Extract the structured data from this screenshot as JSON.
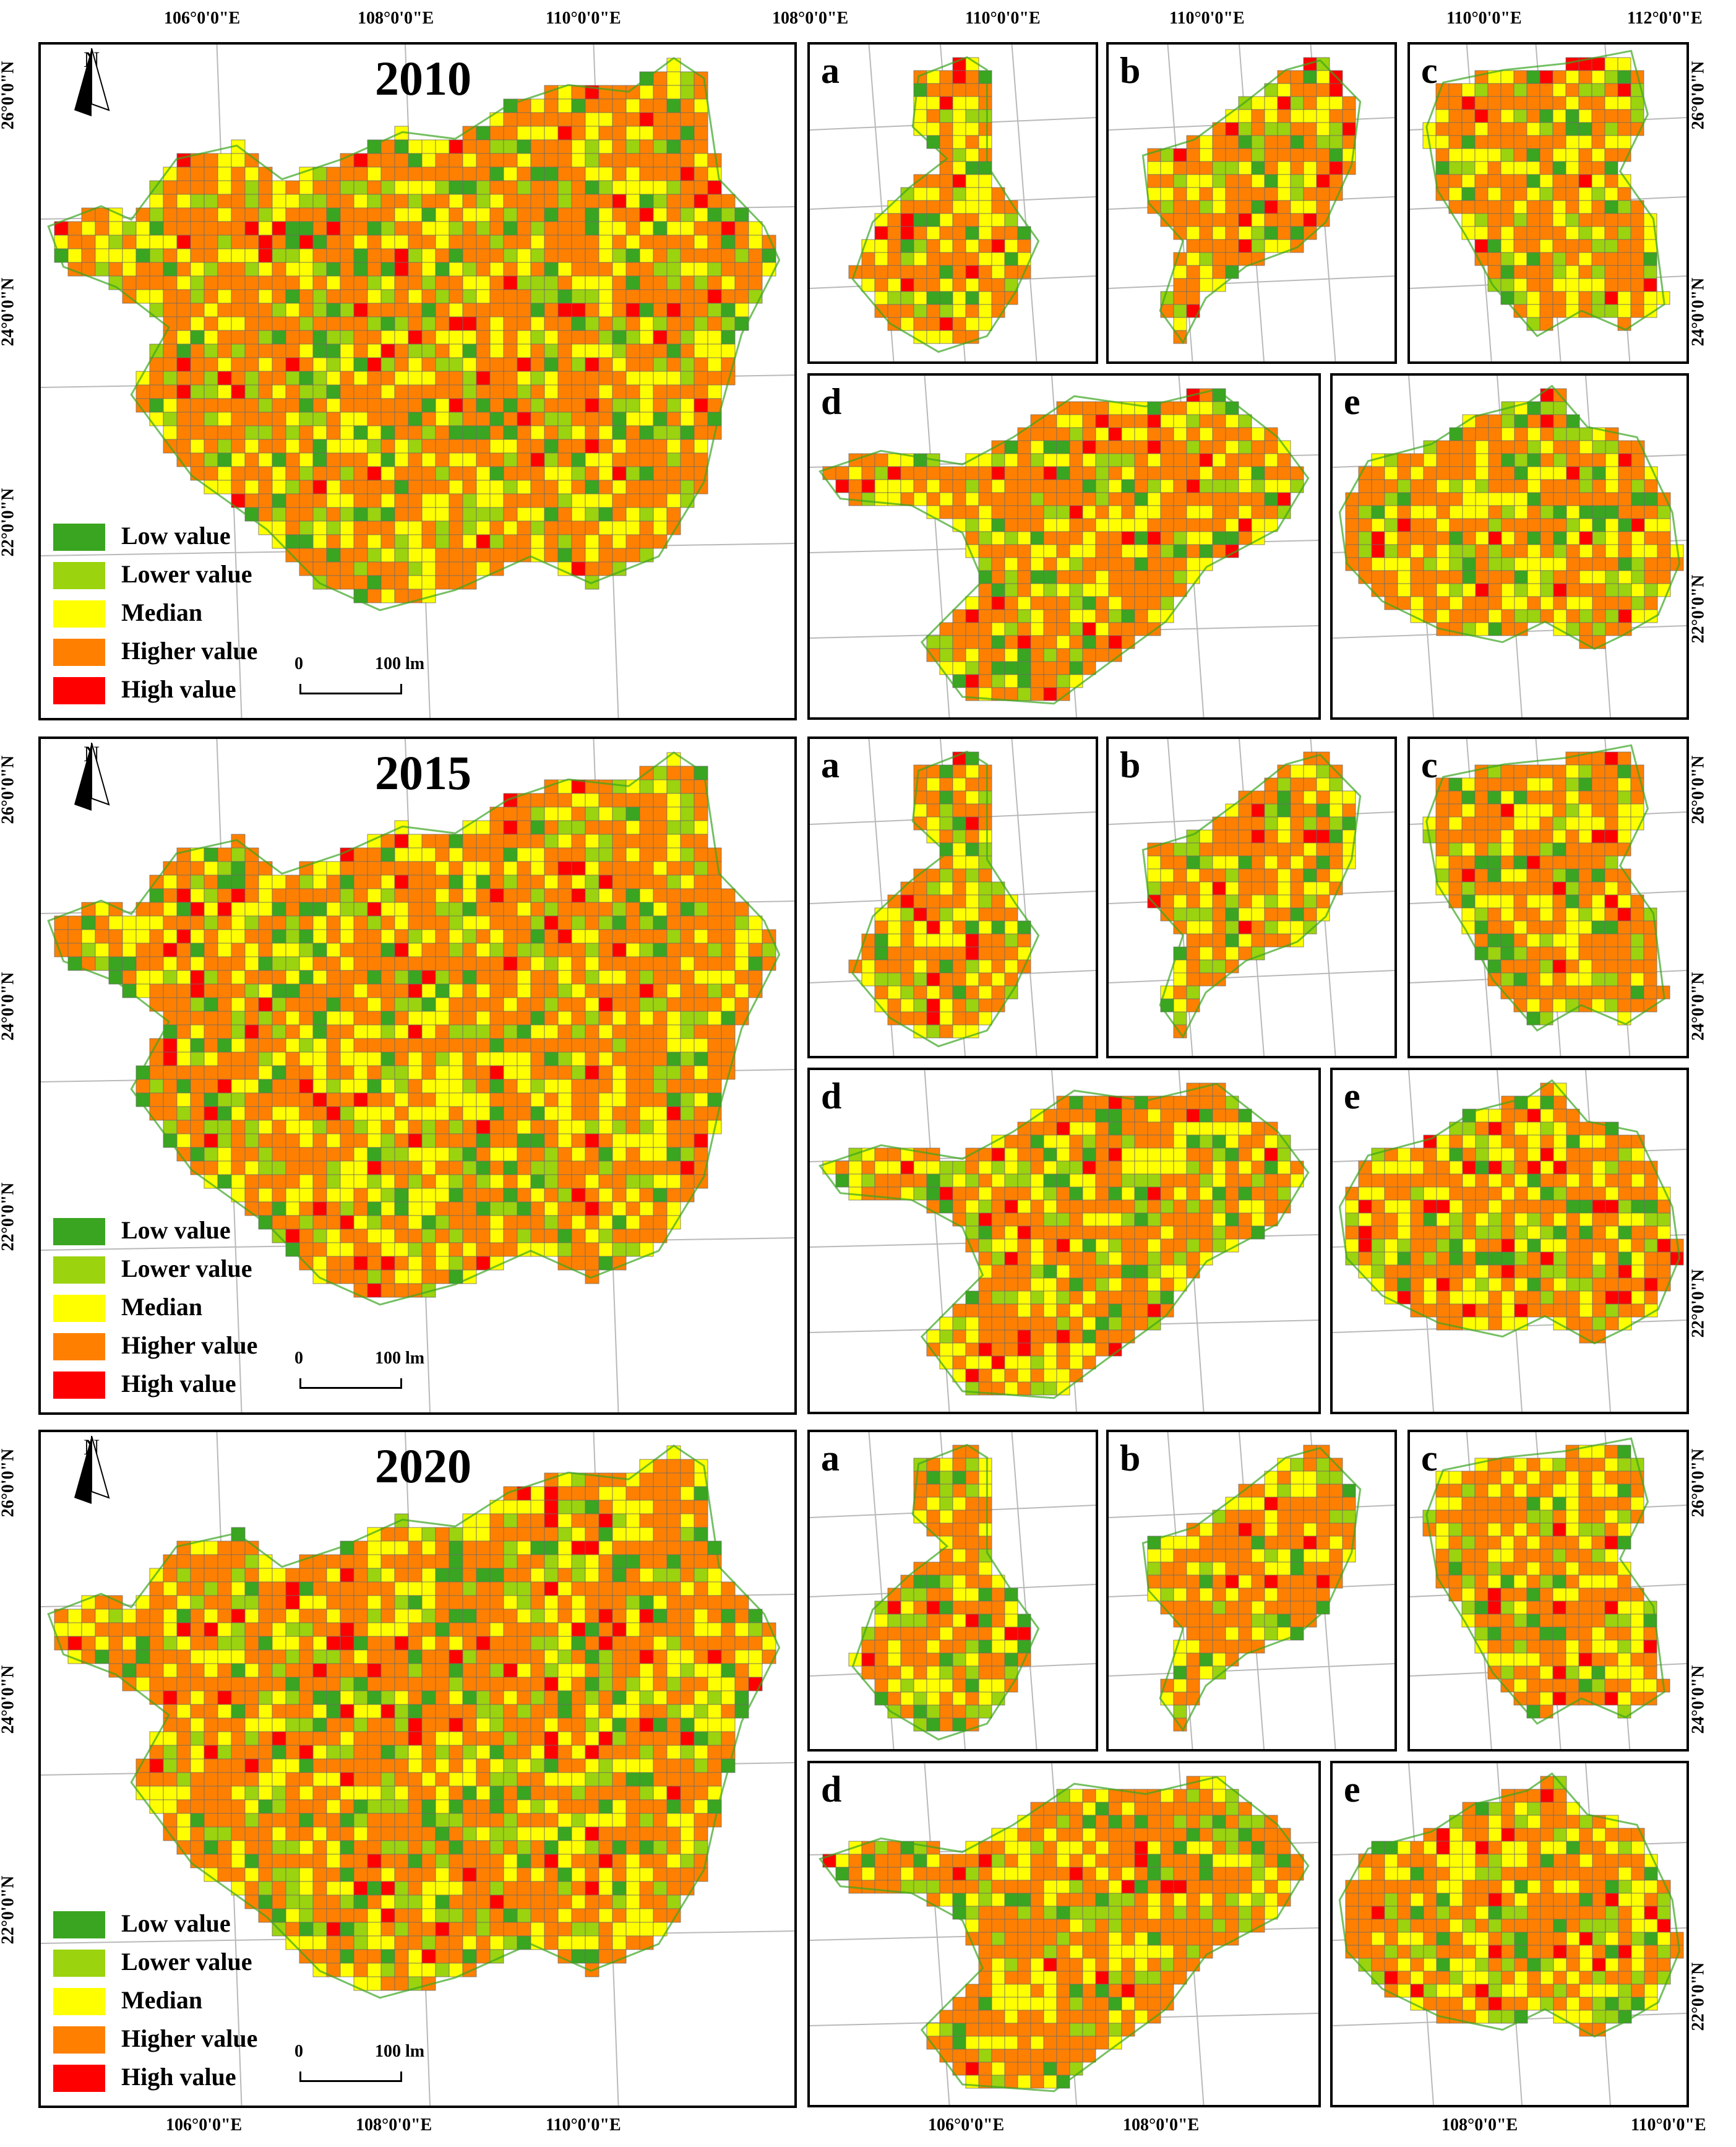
{
  "legend": {
    "items": [
      {
        "label": "Low value",
        "color": "#3aa520"
      },
      {
        "label": "Lower value",
        "color": "#9bd30e"
      },
      {
        "label": "Median",
        "color": "#ffff00"
      },
      {
        "label": "Higher value",
        "color": "#ff8000"
      },
      {
        "label": "High value",
        "color": "#ff0000"
      }
    ]
  },
  "scale_bar": {
    "zero": "0",
    "max": "100 lm"
  },
  "north_arrow": {
    "label": "N"
  },
  "rows": [
    {
      "year": "2010"
    },
    {
      "year": "2015"
    },
    {
      "year": "2020"
    }
  ],
  "subregions": {
    "a": "a",
    "b": "b",
    "c": "c",
    "d": "d",
    "e": "e"
  },
  "graticule": {
    "top_main": [
      "106°0'0\"E",
      "108°0'0\"E",
      "110°0'0\"E"
    ],
    "top_a": [
      "108°0'0\"E",
      "110°0'0\"E"
    ],
    "top_b": [
      "110°0'0\"E"
    ],
    "top_c": [
      "110°0'0\"E",
      "112°0'0\"E"
    ],
    "left_main": [
      "26°0'0\"N",
      "24°0'0\"N",
      "22°0'0\"N"
    ],
    "right_c": [
      "26°0'0\"N",
      "24°0'0\"N"
    ],
    "right_e": [
      "22°0'0\"N"
    ],
    "bottom_main": [
      "106°0'0\"E",
      "108°0'0\"E",
      "110°0'0\"E"
    ],
    "bottom_d": [
      "106°0'0\"E",
      "108°0'0\"E"
    ],
    "bottom_e": [
      "108°0'0\"E",
      "110°0'0\"E"
    ]
  }
}
